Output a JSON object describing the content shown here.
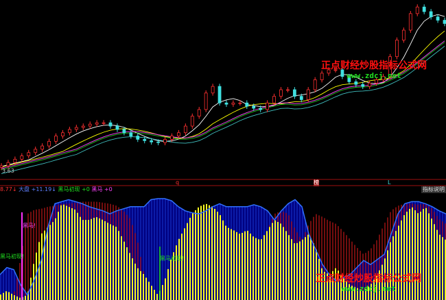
{
  "chart_data": [
    {
      "type": "candlestick",
      "panel": "main",
      "low_label": "3.63",
      "ylim": [
        3.3,
        8.6
      ],
      "closes": [
        3.63,
        3.73,
        3.83,
        3.93,
        4.03,
        4.13,
        4.23,
        4.37,
        4.53,
        4.63,
        4.73,
        4.79,
        4.83,
        4.89,
        4.93,
        4.93,
        4.83,
        4.73,
        4.63,
        4.53,
        4.43,
        4.39,
        4.35,
        4.33,
        4.43,
        4.53,
        4.63,
        4.83,
        5.13,
        5.33,
        5.83,
        6.03,
        5.53,
        5.49,
        5.53,
        5.53,
        5.43,
        5.37,
        5.33,
        5.53,
        5.73,
        5.93,
        5.93,
        5.73,
        5.63,
        5.93,
        6.23,
        6.43,
        6.53,
        6.53,
        6.33,
        6.17,
        6.09,
        6.03,
        6.13,
        6.23,
        6.33,
        6.93,
        7.43,
        7.73,
        8.23,
        8.43,
        8.29,
        8.13,
        8.03,
        7.93
      ],
      "moving_averages": [
        {
          "period": 5,
          "color": "#ffffff"
        },
        {
          "period": 10,
          "color": "#ffff00"
        },
        {
          "period": 20,
          "color": "#ff40ff"
        },
        {
          "period": 30,
          "color": "#20c020"
        },
        {
          "period": 60,
          "color": "#40c0c0"
        }
      ],
      "up_color": "#ff3030",
      "down_color": "#40e0e0",
      "markers": [
        {
          "label": "q",
          "color": "#ff3030"
        },
        {
          "label": "榜",
          "color": "#ff6060"
        },
        {
          "label": "L",
          "color": "#40e0e0"
        }
      ]
    },
    {
      "type": "bar",
      "panel": "indicator",
      "ylim": [
        0,
        100
      ],
      "legend": [
        {
          "text": "8.77↓",
          "color": "#ff3030"
        },
        {
          "text": "大盘",
          "color": "#6080ff"
        },
        {
          "text": "+11.19↓",
          "color": "#6080ff"
        },
        {
          "text": "黑马初现",
          "color": "#20e020"
        },
        {
          "text": "+0",
          "color": "#20e020"
        },
        {
          "text": "黑马",
          "color": "#ff40ff"
        },
        {
          "text": "+0",
          "color": "#ff40ff"
        }
      ],
      "yellow_values": [
        5,
        9,
        5,
        2,
        5,
        39,
        65,
        72,
        79,
        95,
        92,
        89,
        79,
        79,
        82,
        79,
        75,
        72,
        59,
        45,
        32,
        25,
        15,
        5,
        19,
        42,
        59,
        72,
        85,
        92,
        95,
        92,
        85,
        72,
        69,
        65,
        69,
        62,
        59,
        69,
        79,
        75,
        65,
        55,
        59,
        65,
        52,
        29,
        25,
        32,
        22,
        15,
        12,
        9,
        15,
        25,
        39,
        59,
        72,
        85,
        92,
        85,
        92,
        79,
        65,
        59
      ],
      "red_values": [
        5,
        9,
        5,
        40,
        85,
        89,
        90,
        92,
        93,
        95,
        95,
        96,
        97,
        97,
        97,
        96,
        95,
        93,
        88,
        80,
        60,
        25,
        15,
        5,
        19,
        42,
        59,
        72,
        85,
        92,
        95,
        92,
        85,
        72,
        69,
        65,
        69,
        62,
        59,
        69,
        85,
        88,
        85,
        70,
        59,
        75,
        85,
        82,
        78,
        75,
        68,
        60,
        52,
        45,
        50,
        60,
        75,
        88,
        93,
        95,
        95,
        94,
        95,
        90,
        80,
        75
      ],
      "blue_line": [
        25,
        32,
        30,
        15,
        5,
        20,
        39,
        72,
        95,
        97,
        99,
        97,
        95,
        92,
        90,
        88,
        85,
        88,
        90,
        92,
        92,
        92,
        99,
        100,
        100,
        98,
        92,
        88,
        86,
        85,
        88,
        92,
        95,
        92,
        92,
        92,
        92,
        94,
        92,
        88,
        79,
        88,
        95,
        99,
        92,
        65,
        50,
        35,
        25,
        19,
        22,
        25,
        32,
        39,
        35,
        40,
        45,
        65,
        85,
        95,
        97,
        97,
        95,
        92,
        88,
        85
      ],
      "signals": [
        {
          "label": "黑马!",
          "color": "#ff40ff"
        },
        {
          "label": "黑马初现!",
          "color": "#20e020"
        },
        {
          "label": "黑马初现!",
          "color": "#20e020"
        }
      ],
      "colors": {
        "yellow": "#ffff20",
        "red": "#c01818",
        "blue": "#3070ff",
        "fill": "#000080"
      }
    }
  ],
  "indicator_button": "指标说明",
  "watermark": {
    "cn": "正点财经炒股指标公式网",
    "en": "www.zdcj.net"
  }
}
